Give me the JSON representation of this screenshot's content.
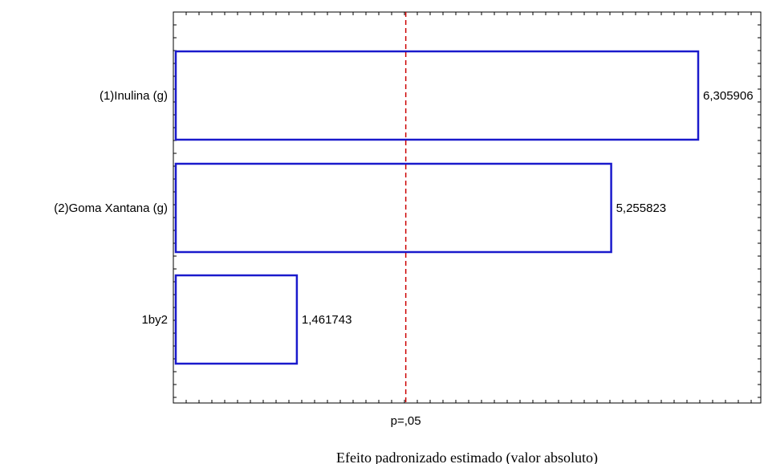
{
  "chart_data": {
    "type": "bar",
    "orientation": "horizontal",
    "categories": [
      "(1)Inulina (g)",
      "(2)Goma Xantana (g)",
      "1by2"
    ],
    "values": [
      6.305906,
      5.255823,
      1.461743
    ],
    "value_labels": [
      "6,305906",
      "5,255823",
      "1,461743"
    ],
    "xlim": [
      0,
      7.0
    ],
    "reference_line": {
      "value": 2.776445,
      "label": "p=,05",
      "style": "dashed"
    },
    "xlabel": "Efeito padronizado estimado (valor absoluto)",
    "ylabel": "",
    "title": "",
    "bar_fill": "#ffffff",
    "bar_stroke": "#1a1acc",
    "reference_color": "#cc0000"
  }
}
